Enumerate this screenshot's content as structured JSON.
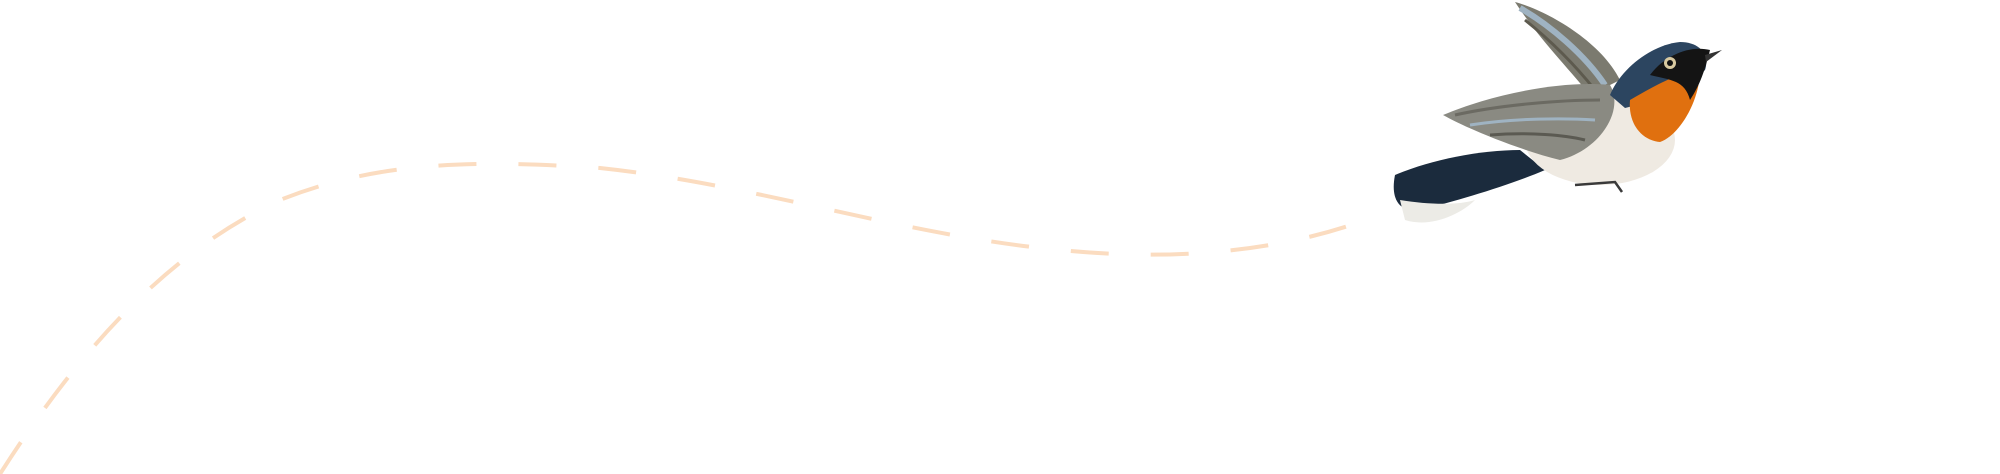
{
  "illustration": {
    "subject": "bird-in-flight",
    "colors": {
      "path_dash": "#fbdcc0",
      "bird_blue": "#1f3347",
      "bird_orange": "#e0700f",
      "bird_belly": "#efeae2",
      "wing_gray": "#8a8a82"
    }
  }
}
